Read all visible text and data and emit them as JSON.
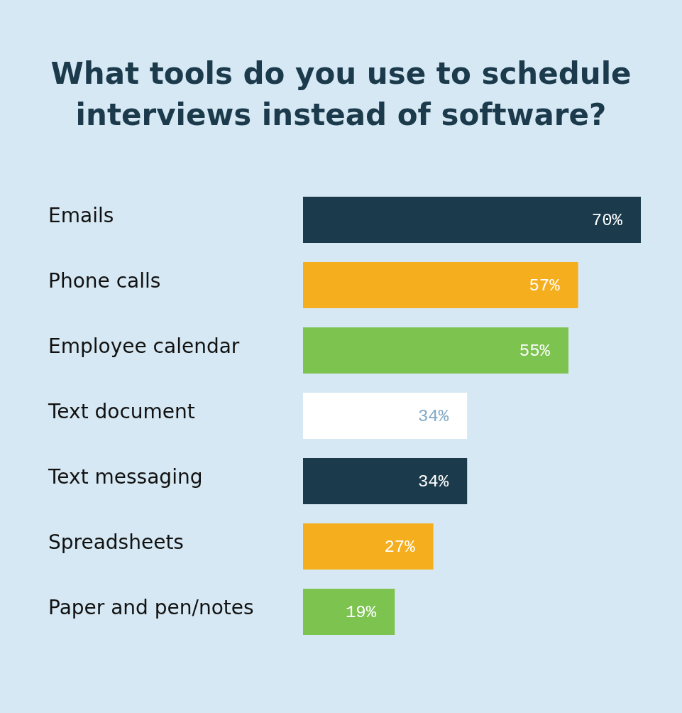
{
  "chart_data": {
    "type": "bar",
    "orientation": "horizontal",
    "title": "What tools do you use to schedule interviews instead of software?",
    "categories": [
      "Emails",
      "Phone calls",
      "Employee calendar",
      "Text document",
      "Text messaging",
      "Spreadsheets",
      "Paper and pen/notes"
    ],
    "values": [
      70,
      57,
      55,
      34,
      34,
      27,
      19
    ],
    "colors": [
      "#1b3a4b",
      "#f4ae1e",
      "#7cc350",
      "#ffffff",
      "#1b3a4b",
      "#f4ae1e",
      "#7cc350"
    ],
    "value_labels": [
      "70%",
      "57%",
      "55%",
      "34%",
      "34%",
      "27%",
      "19%"
    ]
  }
}
